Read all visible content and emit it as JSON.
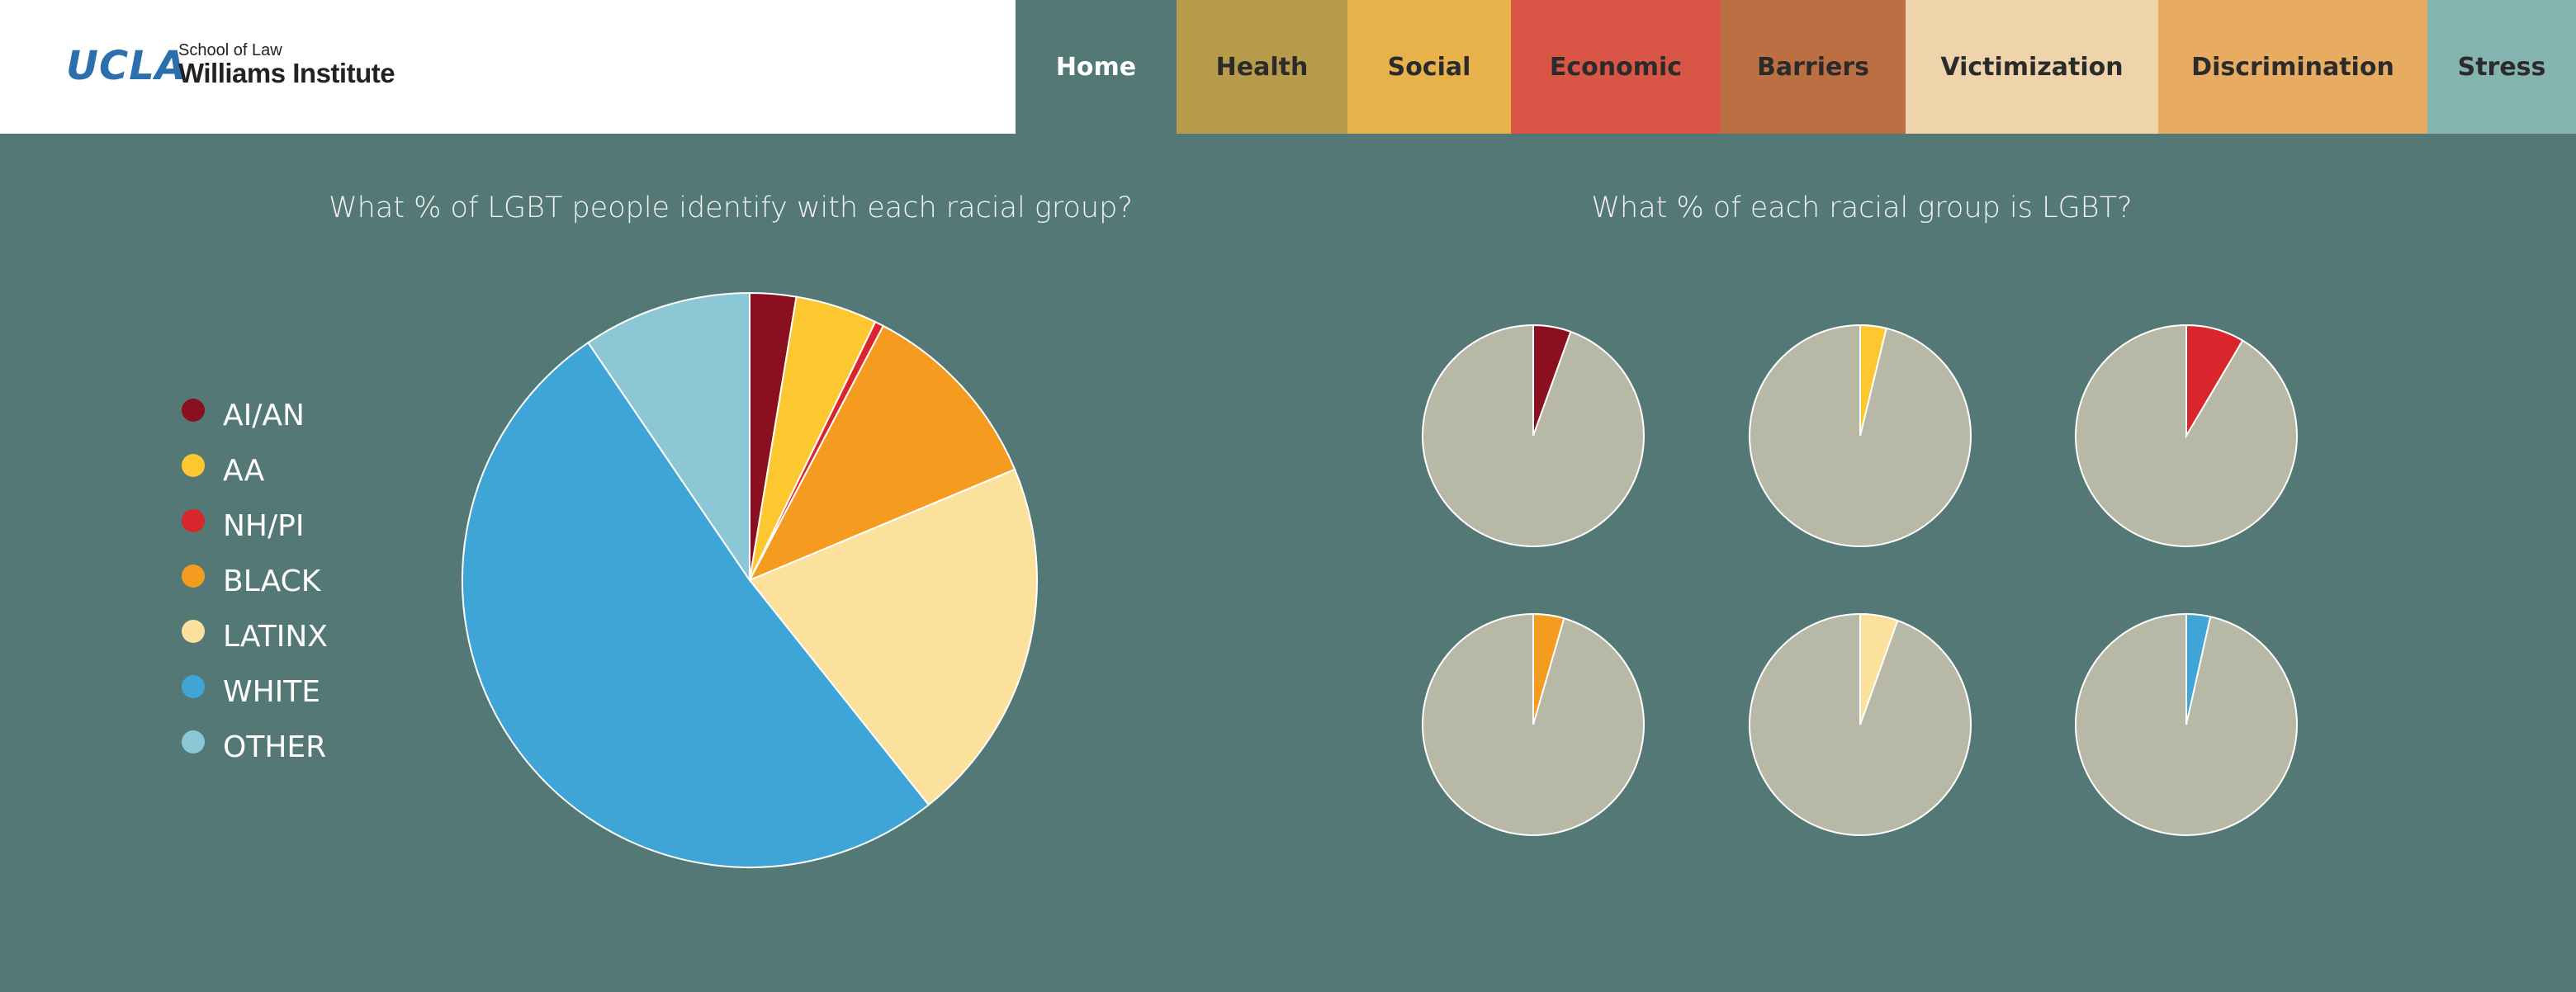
{
  "header": {
    "logo": {
      "ucla": "UCLA",
      "school": "School of Law",
      "institute": "Williams Institute"
    },
    "tabs": [
      {
        "label": "Home",
        "color": "#547876",
        "active": true
      },
      {
        "label": "Health",
        "color": "#b89a4b"
      },
      {
        "label": "Social",
        "color": "#e8b24a"
      },
      {
        "label": "Economic",
        "color": "#d95545"
      },
      {
        "label": "Barriers",
        "color": "#bc6f43"
      },
      {
        "label": "Victimization",
        "color": "#eed3ab"
      },
      {
        "label": "Discrimination",
        "color": "#e8ab62"
      },
      {
        "label": "Stress",
        "color": "#85b3b0"
      }
    ]
  },
  "left_title": "What % of LGBT people identify with each racial group?",
  "right_title": "What % of each racial group is LGBT?",
  "legend": [
    {
      "label": "AI/AN",
      "color": "#8a0f1f"
    },
    {
      "label": "AA",
      "color": "#fdc82f"
    },
    {
      "label": "NH/PI",
      "color": "#d9262c"
    },
    {
      "label": "BLACK",
      "color": "#f59b1f"
    },
    {
      "label": "LATINX",
      "color": "#fbe19c"
    },
    {
      "label": "WHITE",
      "color": "#3ea5d6"
    },
    {
      "label": "OTHER",
      "color": "#8cc7d6"
    }
  ],
  "chart_data": [
    {
      "type": "pie",
      "title": "What % of LGBT people identify with each racial group?",
      "categories": [
        "AI/AN",
        "AA",
        "NH/PI",
        "BLACK",
        "LATINX",
        "WHITE",
        "OTHER"
      ],
      "values": [
        2.6,
        4.6,
        0.5,
        11.0,
        20.6,
        51.2,
        9.5
      ]
    },
    {
      "type": "pie",
      "title": "What % of each racial group is LGBT?",
      "categories": [
        "AI/AN",
        "AA",
        "NH/PI",
        "BLACK",
        "LATINX",
        "WHITE"
      ],
      "values": [
        5.5,
        3.8,
        8.5,
        4.5,
        5.5,
        3.5
      ],
      "remainder_color": "#b8b8a7"
    }
  ]
}
